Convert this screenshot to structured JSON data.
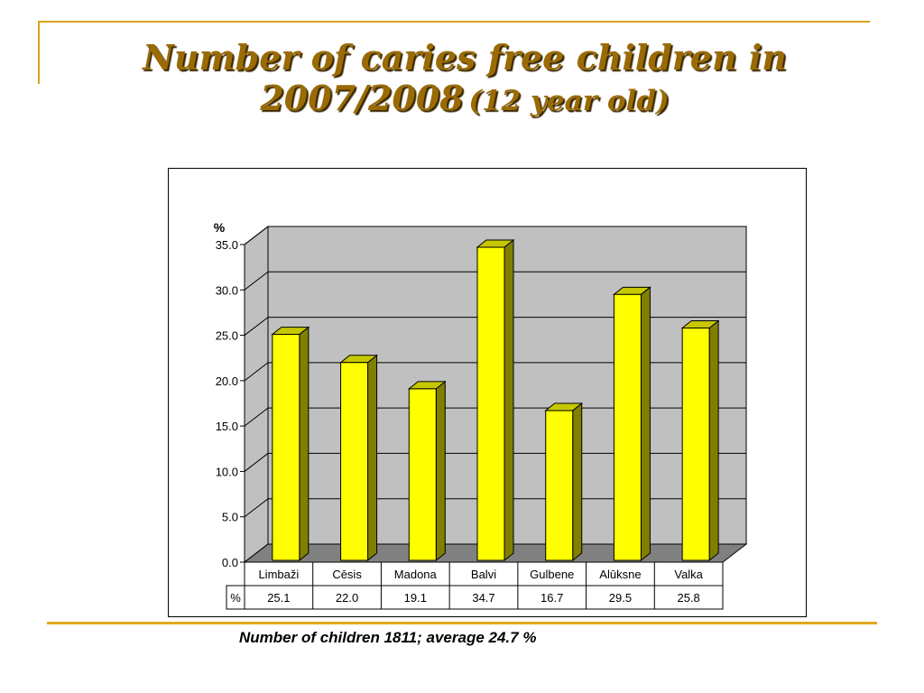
{
  "title": {
    "main": "Number of caries free children in 2007/2008",
    "sub": "(12 year old)"
  },
  "footer": "Number of children 1811; average 24.7 %",
  "colors": {
    "accent": "#d9a514",
    "title": "#9a6a05",
    "bar_face": "#ffff00",
    "bar_side": "#808000",
    "bar_top": "#c7c700",
    "wall": "#c0c0c0",
    "floor": "#808080"
  },
  "chart_data": {
    "type": "bar",
    "ylabel": "%",
    "ylim": [
      0,
      35
    ],
    "yticks": [
      "0.0",
      "5.0",
      "10.0",
      "15.0",
      "20.0",
      "25.0",
      "30.0",
      "35.0"
    ],
    "grid": true,
    "categories": [
      "Limbaži",
      "Cēsis",
      "Madona",
      "Balvi",
      "Gulbene",
      "Alūksne",
      "Valka"
    ],
    "series": [
      {
        "name": "%",
        "values": [
          25.1,
          22.0,
          19.1,
          34.7,
          16.7,
          29.5,
          25.8
        ],
        "labels": [
          "25.1",
          "22.0",
          "19.1",
          "34.7",
          "16.7",
          "29.5",
          "25.8"
        ]
      }
    ],
    "data_table": true
  }
}
